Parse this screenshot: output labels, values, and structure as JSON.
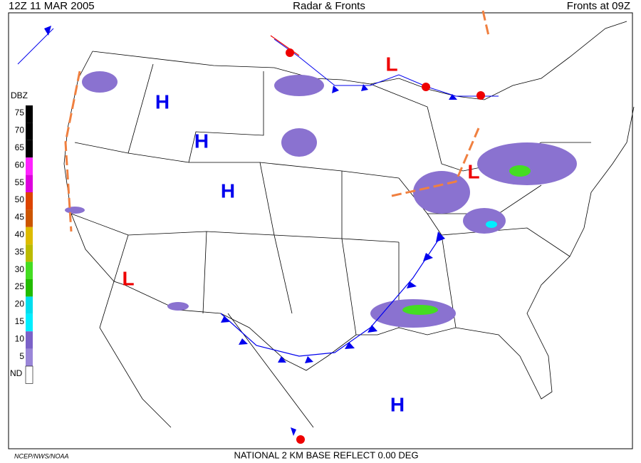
{
  "header": {
    "left": "12Z  11 MAR  2005",
    "center": "Radar & Fronts",
    "right": "Fronts at 09Z"
  },
  "legend": {
    "title": "DBZ",
    "levels": [
      {
        "label": "75",
        "color": "#000000"
      },
      {
        "label": "70",
        "color": "#000000"
      },
      {
        "label": "65",
        "color": "#000000"
      },
      {
        "label": "60",
        "color": "#ff22ff"
      },
      {
        "label": "55",
        "color": "#dd00dd"
      },
      {
        "label": "50",
        "color": "#dd4400"
      },
      {
        "label": "45",
        "color": "#cc5500"
      },
      {
        "label": "40",
        "color": "#ddbb00"
      },
      {
        "label": "35",
        "color": "#bbbb00"
      },
      {
        "label": "30",
        "color": "#44dd22"
      },
      {
        "label": "25",
        "color": "#22bb00"
      },
      {
        "label": "20",
        "color": "#00ddee"
      },
      {
        "label": "15",
        "color": "#00eeff"
      },
      {
        "label": "10",
        "color": "#7b62c8"
      },
      {
        "label": "5",
        "color": "#9a86d8"
      },
      {
        "label": "ND",
        "color": "#ffffff"
      }
    ]
  },
  "pressure_centers": [
    {
      "label": "H",
      "color": "#0000ee"
    },
    {
      "label": "H",
      "color": "#0000ee"
    },
    {
      "label": "H",
      "color": "#0000ee"
    },
    {
      "label": "H",
      "color": "#0000ee"
    },
    {
      "label": "L",
      "color": "#ee0000"
    },
    {
      "label": "L",
      "color": "#ee0000"
    },
    {
      "label": "L",
      "color": "#ee0000"
    }
  ],
  "footer": {
    "left": "NCEP/NWS/NOAA",
    "center": "NATIONAL 2 KM BASE REFLECT 0.00 DEG"
  }
}
